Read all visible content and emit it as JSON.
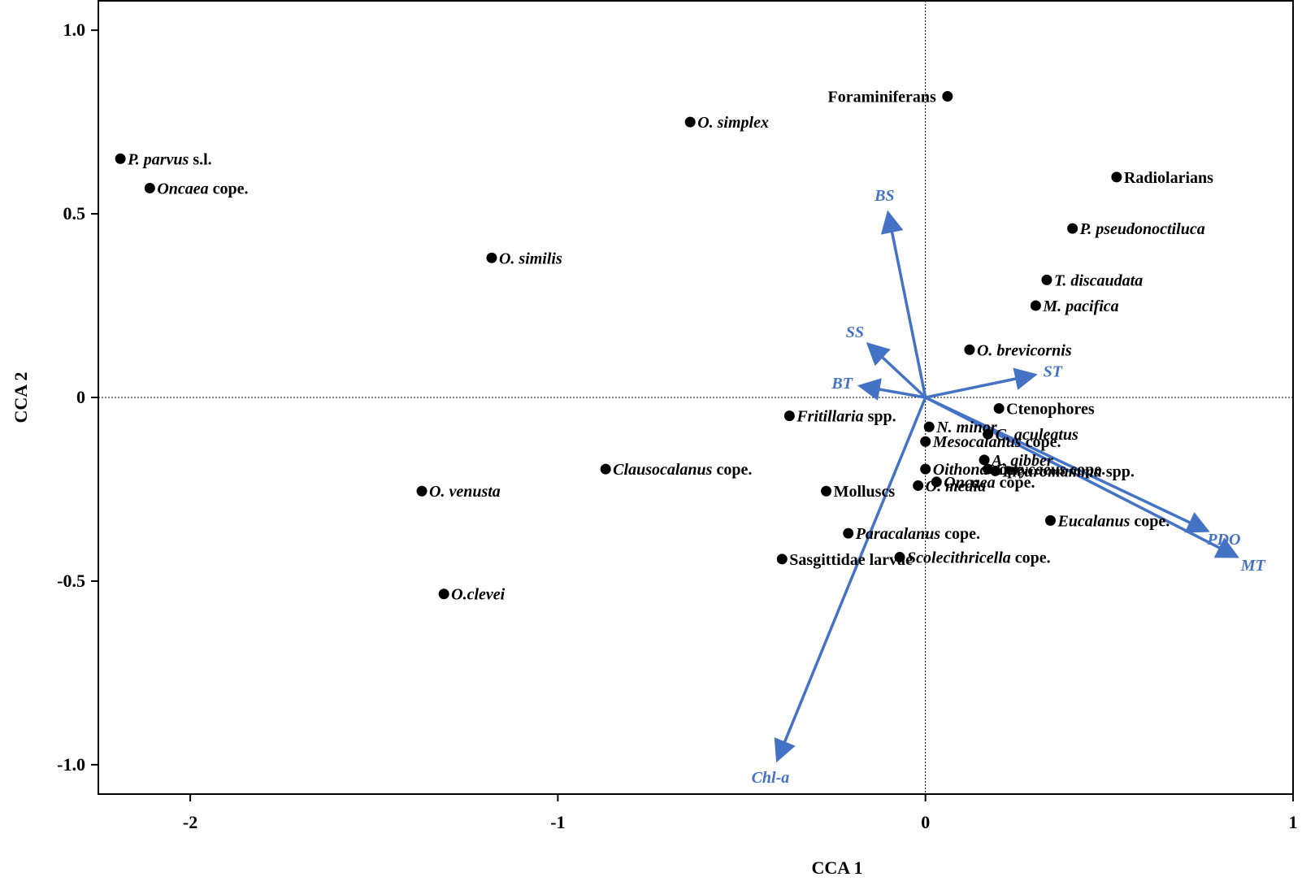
{
  "chart_data": {
    "type": "scatter",
    "title": "",
    "xlabel": "CCA 1",
    "ylabel": "CCA 2",
    "xlim": [
      -2.25,
      1.0
    ],
    "ylim": [
      -1.08,
      1.08
    ],
    "xticks": [
      -2,
      -1,
      0,
      1
    ],
    "yticks": [
      1.0,
      0.5,
      0,
      -0.5,
      -1.0
    ],
    "xtick_labels": [
      "-2",
      "-1",
      "0",
      "1"
    ],
    "ytick_labels": [
      "1.0",
      "0.5",
      "0",
      "-0.5",
      "-1.0"
    ],
    "grid": false,
    "zero_lines": true,
    "vector_color": "#4472c4",
    "points": [
      {
        "id": "p-parvus",
        "parts": [
          {
            "t": "P. parvus",
            "i": true
          },
          {
            "t": " s.l.",
            "i": false
          }
        ],
        "x": -2.19,
        "y": 0.65,
        "label_side": "right"
      },
      {
        "id": "oncaea-cope-upper",
        "parts": [
          {
            "t": "Oncaea",
            "i": true
          },
          {
            "t": " cope.",
            "i": false
          }
        ],
        "x": -2.11,
        "y": 0.57,
        "label_side": "right"
      },
      {
        "id": "o-simplex",
        "parts": [
          {
            "t": "O. simplex",
            "i": true
          }
        ],
        "x": -0.64,
        "y": 0.75,
        "label_side": "right"
      },
      {
        "id": "o-similis",
        "parts": [
          {
            "t": "O. similis",
            "i": true
          }
        ],
        "x": -1.18,
        "y": 0.38,
        "label_side": "right"
      },
      {
        "id": "foraminiferans",
        "parts": [
          {
            "t": "Foraminiferans",
            "i": false
          }
        ],
        "x": 0.06,
        "y": 0.82,
        "label_side": "left"
      },
      {
        "id": "radiolarians",
        "parts": [
          {
            "t": "Radiolarians",
            "i": false
          }
        ],
        "x": 0.52,
        "y": 0.6,
        "label_side": "right"
      },
      {
        "id": "p-pseudonoctiluca",
        "parts": [
          {
            "t": "P. pseudonoctiluca",
            "i": true
          }
        ],
        "x": 0.4,
        "y": 0.46,
        "label_side": "right"
      },
      {
        "id": "t-discaudata",
        "parts": [
          {
            "t": "T. discaudata",
            "i": true
          }
        ],
        "x": 0.33,
        "y": 0.32,
        "label_side": "right"
      },
      {
        "id": "m-pacifica",
        "parts": [
          {
            "t": "M. pacifica",
            "i": true
          }
        ],
        "x": 0.3,
        "y": 0.25,
        "label_side": "right"
      },
      {
        "id": "o-brevicornis",
        "parts": [
          {
            "t": "O. brevicornis",
            "i": true
          }
        ],
        "x": 0.12,
        "y": 0.13,
        "label_side": "right"
      },
      {
        "id": "ctenophores",
        "parts": [
          {
            "t": "Ctenophores",
            "i": false
          }
        ],
        "x": 0.2,
        "y": -0.03,
        "label_side": "right"
      },
      {
        "id": "fritillaria",
        "parts": [
          {
            "t": "Fritillaria",
            "i": true
          },
          {
            "t": " spp.",
            "i": false
          }
        ],
        "x": -0.37,
        "y": -0.05,
        "label_side": "right"
      },
      {
        "id": "n-minor",
        "parts": [
          {
            "t": "N. minor",
            "i": true
          }
        ],
        "x": 0.01,
        "y": -0.08,
        "label_side": "right"
      },
      {
        "id": "c-aculeatus",
        "parts": [
          {
            "t": "C. aculeatus",
            "i": true
          }
        ],
        "x": 0.17,
        "y": -0.1,
        "label_side": "right"
      },
      {
        "id": "mesocalanus",
        "parts": [
          {
            "t": "Mesocalanus",
            "i": true
          },
          {
            "t": " cope.",
            "i": false
          }
        ],
        "x": 0.0,
        "y": -0.12,
        "label_side": "right"
      },
      {
        "id": "a-gibber",
        "parts": [
          {
            "t": "A. gibber",
            "i": true
          }
        ],
        "x": 0.16,
        "y": -0.17,
        "label_side": "right"
      },
      {
        "id": "corycaeus",
        "parts": [
          {
            "t": "Corycaeus",
            "i": true
          },
          {
            "t": " cope.",
            "i": false
          }
        ],
        "x": 0.17,
        "y": -0.195,
        "label_side": "right"
      },
      {
        "id": "oithona",
        "parts": [
          {
            "t": "Oithona",
            "i": true
          },
          {
            "t": " cope.",
            "i": false
          }
        ],
        "x": 0.0,
        "y": -0.195,
        "label_side": "right"
      },
      {
        "id": "pleuromamma",
        "parts": [
          {
            "t": "Pleuromamma",
            "i": true
          },
          {
            "t": " spp.",
            "i": false
          }
        ],
        "x": 0.19,
        "y": -0.2,
        "label_side": "right"
      },
      {
        "id": "oncaea-cope-lower",
        "parts": [
          {
            "t": "Oncaea",
            "i": true
          },
          {
            "t": " cope.",
            "i": false
          }
        ],
        "x": 0.03,
        "y": -0.23,
        "label_side": "right"
      },
      {
        "id": "o-media",
        "parts": [
          {
            "t": "O. media",
            "i": true
          }
        ],
        "x": -0.02,
        "y": -0.24,
        "label_side": "right"
      },
      {
        "id": "clausocalanus",
        "parts": [
          {
            "t": "Clausocalanus",
            "i": true
          },
          {
            "t": " cope.",
            "i": false
          }
        ],
        "x": -0.87,
        "y": -0.195,
        "label_side": "right"
      },
      {
        "id": "molluscs",
        "parts": [
          {
            "t": "Molluscs",
            "i": false
          }
        ],
        "x": -0.27,
        "y": -0.255,
        "label_side": "right"
      },
      {
        "id": "o-venusta",
        "parts": [
          {
            "t": "O. venusta",
            "i": true
          }
        ],
        "x": -1.37,
        "y": -0.255,
        "label_side": "right"
      },
      {
        "id": "eucalanus",
        "parts": [
          {
            "t": "Eucalanus",
            "i": true
          },
          {
            "t": " cope.",
            "i": false
          }
        ],
        "x": 0.34,
        "y": -0.335,
        "label_side": "right"
      },
      {
        "id": "paracalanus",
        "parts": [
          {
            "t": "Paracalanus",
            "i": true
          },
          {
            "t": " cope.",
            "i": false
          }
        ],
        "x": -0.21,
        "y": -0.37,
        "label_side": "right"
      },
      {
        "id": "sasgittidae",
        "parts": [
          {
            "t": "Sasgittidae larvae",
            "i": false
          }
        ],
        "x": -0.39,
        "y": -0.44,
        "label_side": "right"
      },
      {
        "id": "scolecithricella",
        "parts": [
          {
            "t": "Scolecithricella",
            "i": true
          },
          {
            "t": "  cope.",
            "i": false
          }
        ],
        "x": -0.07,
        "y": -0.435,
        "label_side": "right"
      },
      {
        "id": "o-clevei",
        "parts": [
          {
            "t": "O.clevei",
            "i": true
          }
        ],
        "x": -1.31,
        "y": -0.535,
        "label_side": "right"
      }
    ],
    "vectors": [
      {
        "id": "bs",
        "label": "BS",
        "x": -0.1,
        "y": 0.495
      },
      {
        "id": "ss",
        "label": "SS",
        "x": -0.15,
        "y": 0.14
      },
      {
        "id": "bt",
        "label": "BT",
        "x": -0.17,
        "y": 0.03
      },
      {
        "id": "st",
        "label": "ST",
        "x": 0.29,
        "y": 0.06
      },
      {
        "id": "pdo",
        "label": "PDO",
        "x": 0.76,
        "y": -0.36
      },
      {
        "id": "mt",
        "label": "MT",
        "x": 0.84,
        "y": -0.43
      },
      {
        "id": "chl-a",
        "label": "Chl-a",
        "x": -0.4,
        "y": -0.98
      }
    ]
  }
}
